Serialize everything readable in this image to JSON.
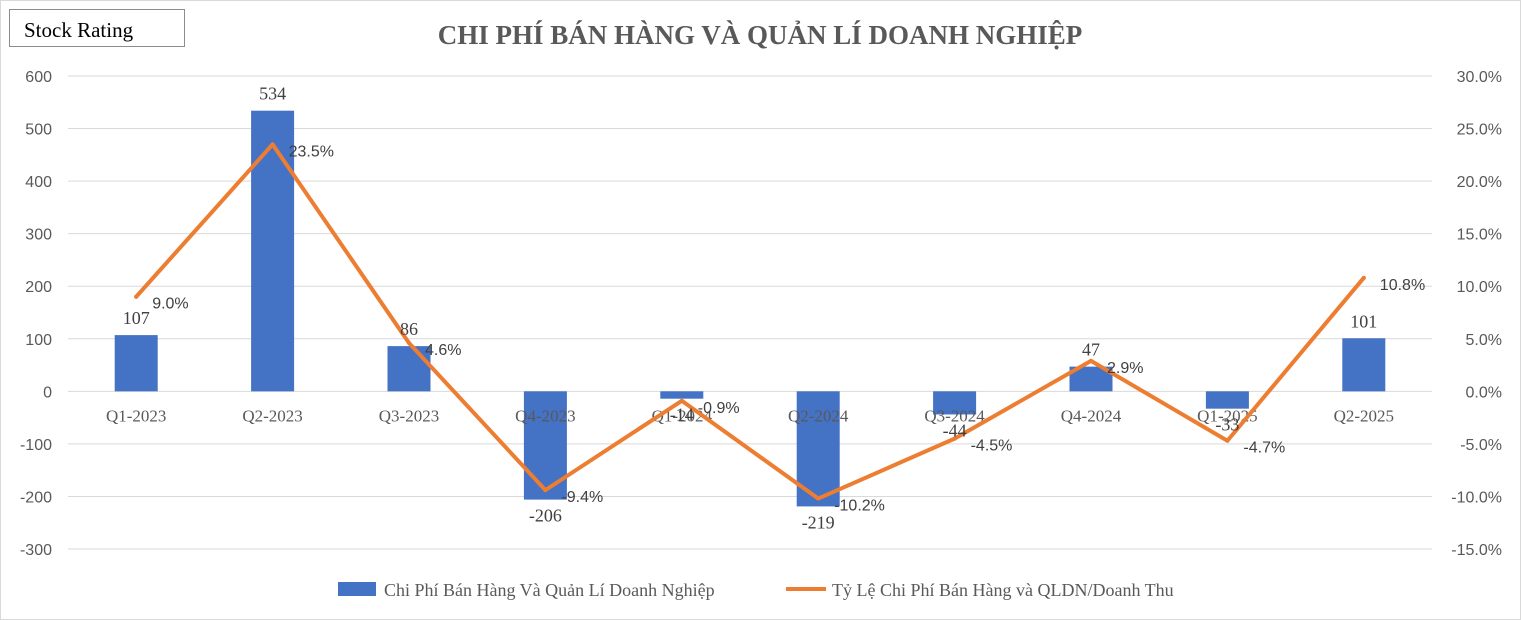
{
  "badge": {
    "label": "Stock Rating"
  },
  "chart_data": {
    "type": "bar",
    "title": "CHI PHÍ BÁN HÀNG VÀ QUẢN LÍ DOANH NGHIỆP",
    "categories": [
      "Q1-2023",
      "Q2-2023",
      "Q3-2023",
      "Q4-2023",
      "Q1-2024",
      "Q2-2024",
      "Q3-2024",
      "Q4-2024",
      "Q1-2025",
      "Q2-2025"
    ],
    "series": [
      {
        "name": "Chi Phí Bán Hàng Và Quản Lí Doanh Nghiệp",
        "type": "bar",
        "axis": "left",
        "color": "#4472C4",
        "values": [
          107,
          534,
          86,
          -206,
          -14,
          -219,
          -44,
          47,
          -33,
          101
        ],
        "labels": [
          "107",
          "534",
          "86",
          "-206",
          "-14",
          "-219",
          "-44",
          "47",
          "-33",
          "101"
        ]
      },
      {
        "name": "Tỷ Lệ Chi Phí Bán Hàng và QLDN/Doanh Thu",
        "type": "line",
        "axis": "right",
        "color": "#ED7D31",
        "values": [
          9.0,
          23.5,
          4.6,
          -9.4,
          -0.9,
          -10.2,
          -4.5,
          2.9,
          -4.7,
          10.8
        ],
        "labels": [
          "9.0%",
          "23.5%",
          "4.6%",
          "-9.4%",
          "-0.9%",
          "-10.2%",
          "-4.5%",
          "2.9%",
          "-4.7%",
          "10.8%"
        ]
      }
    ],
    "y_left": {
      "ylim": [
        -300,
        600
      ],
      "ticks": [
        600,
        500,
        400,
        300,
        200,
        100,
        0,
        -100,
        -200,
        -300
      ],
      "tick_labels": [
        "600",
        "500",
        "400",
        "300",
        "200",
        "100",
        "0",
        "-100",
        "-200",
        "-300"
      ]
    },
    "y_right": {
      "ylim": [
        -15,
        30
      ],
      "ticks": [
        30,
        25,
        20,
        15,
        10,
        5,
        0,
        -5,
        -10,
        -15
      ],
      "tick_labels": [
        "30.0%",
        "25.0%",
        "20.0%",
        "15.0%",
        "10.0%",
        "5.0%",
        "0.0%",
        "-5.0%",
        "-10.0%",
        "-15.0%"
      ]
    },
    "grid": true,
    "legend_position": "bottom"
  }
}
